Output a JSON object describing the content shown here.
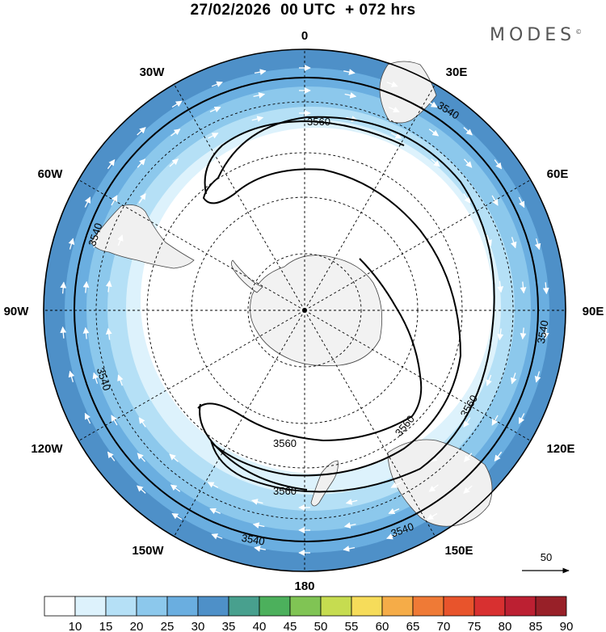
{
  "header": {
    "title": "27/02/2026  00 UTC  + 072 hrs",
    "brand": "MODES",
    "brand_mark": "©"
  },
  "map": {
    "projection": "south-polar-stereographic",
    "longitude_labels": {
      "top": "0",
      "upper_left": "30W",
      "upper_right": "30E",
      "left_upper": "60W",
      "right_upper": "60E",
      "left": "90W",
      "right": "90E",
      "left_lower": "120W",
      "right_lower": "120E",
      "lower_left": "150W",
      "lower_right": "150E",
      "bottom": "180"
    },
    "contour_labels": [
      "3560",
      "3540"
    ],
    "wind_shading": "wind speed",
    "vector_reference": {
      "value": "50",
      "icon": "arrow-right-icon"
    }
  },
  "colorbar": {
    "colors": [
      "#ffffff",
      "#ddf2fc",
      "#b5e0f6",
      "#8cc8ec",
      "#6aaee0",
      "#4e90c8",
      "#48a08e",
      "#4cb05c",
      "#80c454",
      "#c6dc50",
      "#f6dc5a",
      "#f5ac48",
      "#ef7a36",
      "#e8542c",
      "#d83030",
      "#bc2032",
      "#982028"
    ],
    "labels": [
      "10",
      "15",
      "20",
      "25",
      "30",
      "35",
      "40",
      "45",
      "50",
      "55",
      "60",
      "65",
      "70",
      "75",
      "80",
      "85",
      "90"
    ]
  }
}
